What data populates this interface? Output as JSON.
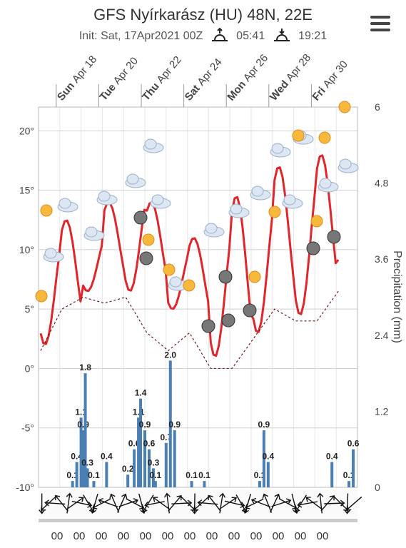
{
  "header": {
    "title": "GFS Nyírkarász (HU) 48N, 22E",
    "init": "Init: Sat, 17Apr2021 00Z",
    "sunrise": "05:41",
    "sunset": "19:21"
  },
  "menu": {
    "icon": "hamburger-menu-icon"
  },
  "colors": {
    "temperature": "#e0262a",
    "dewpoint": "#6b1a1a",
    "precip_bar": "#4a7fb5",
    "grid": "#cfcfcf"
  },
  "chart_data": {
    "type": "line",
    "day_labels": [
      {
        "dow": "Sun",
        "date": "Apr 18"
      },
      {
        "dow": "Tue",
        "date": "Apr 20"
      },
      {
        "dow": "Thu",
        "date": "Apr 22"
      },
      {
        "dow": "Sat",
        "date": "Apr 24"
      },
      {
        "dow": "Mon",
        "date": "Apr 26"
      },
      {
        "dow": "Wed",
        "date": "Apr 28"
      },
      {
        "dow": "Fri",
        "date": "Apr 30"
      }
    ],
    "y_left_ticks": [
      "20°",
      "15°",
      "10°",
      "5°",
      "0°",
      "-5°",
      "-10°"
    ],
    "y_left_range": [
      -10,
      22
    ],
    "y_right_ticks": [
      "6",
      "4.8",
      "3.6",
      "2.4",
      "1.2",
      "0"
    ],
    "y_right_range": [
      0,
      6
    ],
    "y_right_label": "Precipitation (mm)",
    "temperature_max": [
      12,
      12.5,
      11.5,
      14,
      15.5,
      14,
      10.5,
      11,
      13,
      14.5,
      15.5,
      17,
      17.5,
      18,
      20
    ],
    "temperature_min": [
      2,
      3.5,
      6.5,
      7,
      6.5,
      6.5,
      5,
      4,
      1,
      1.5,
      3,
      5,
      4.5,
      6,
      8
    ],
    "dewpoint": [
      1.5,
      5,
      6,
      5.5,
      6,
      3,
      1.5,
      3,
      0,
      0,
      2.5,
      5,
      4,
      4,
      6.5
    ],
    "precip_bars": [
      {
        "day": 0.8,
        "v": 0.1,
        "label": "0.1"
      },
      {
        "day": 0.9,
        "v": 0.4,
        "label": "0.4"
      },
      {
        "day": 1.0,
        "v": 1.1,
        "label": "1.1"
      },
      {
        "day": 1.05,
        "v": 0.9,
        "label": "0.9"
      },
      {
        "day": 1.1,
        "v": 1.8,
        "label": "1.8"
      },
      {
        "day": 1.15,
        "v": 0.3,
        "label": "0.3"
      },
      {
        "day": 1.3,
        "v": 0.1,
        "label": "0.1"
      },
      {
        "day": 1.6,
        "v": 0.4,
        "label": "0.4"
      },
      {
        "day": 2.1,
        "v": 0.2,
        "label": "0.2"
      },
      {
        "day": 2.25,
        "v": 0.6,
        "label": "0.6"
      },
      {
        "day": 2.35,
        "v": 1.1,
        "label": "1.1"
      },
      {
        "day": 2.4,
        "v": 1.4,
        "label": "1.4"
      },
      {
        "day": 2.5,
        "v": 0.9,
        "label": "0.9"
      },
      {
        "day": 2.6,
        "v": 0.6,
        "label": "0.6"
      },
      {
        "day": 2.7,
        "v": 0.3,
        "label": "0.3"
      },
      {
        "day": 2.75,
        "v": 0.1,
        "label": "0.1"
      },
      {
        "day": 3.0,
        "v": 0.7,
        "label": "0.7"
      },
      {
        "day": 3.1,
        "v": 2.0,
        "label": "2.0"
      },
      {
        "day": 3.2,
        "v": 0.9,
        "label": "0.9"
      },
      {
        "day": 3.6,
        "v": 0.1,
        "label": "0.1"
      },
      {
        "day": 3.9,
        "v": 0.1,
        "label": "0.1"
      },
      {
        "day": 5.2,
        "v": 0.1,
        "label": "0.1"
      },
      {
        "day": 5.3,
        "v": 0.9,
        "label": "0.9"
      },
      {
        "day": 5.4,
        "v": 0.4,
        "label": "0.4"
      },
      {
        "day": 6.9,
        "v": 0.4,
        "label": "0.4"
      },
      {
        "day": 7.3,
        "v": 0.1,
        "label": "0.1"
      },
      {
        "day": 7.4,
        "v": 0.6,
        "label": "0.6"
      }
    ],
    "wind_count": 48,
    "hour_labels": [
      "00",
      "00",
      "00",
      "00",
      "00",
      "00",
      "00",
      "00",
      "00",
      "00",
      "00",
      "00",
      "00"
    ]
  }
}
